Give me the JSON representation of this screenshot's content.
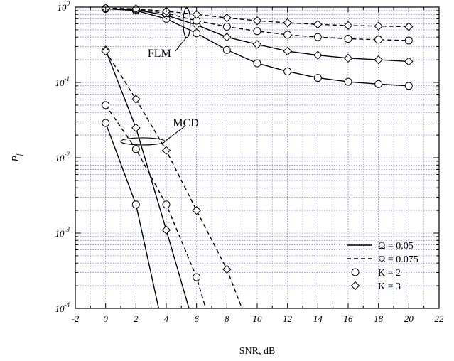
{
  "chart_data": {
    "type": "line",
    "title": "",
    "xlabel": "SNR,  dB",
    "ylabel": "P",
    "ylabel_subscript": "f",
    "xlim": [
      -2,
      22
    ],
    "ylim": [
      0.0001,
      1
    ],
    "yscale": "log",
    "grid": true,
    "xticks": [
      "-2",
      "0",
      "2",
      "4",
      "6",
      "8",
      "10",
      "12",
      "14",
      "16",
      "18",
      "20",
      "22"
    ],
    "yticks": [
      {
        "base": "10",
        "exp": "0"
      },
      {
        "base": "10",
        "exp": "-1"
      },
      {
        "base": "10",
        "exp": "-2"
      },
      {
        "base": "10",
        "exp": "-3"
      },
      {
        "base": "10",
        "exp": "-4"
      }
    ],
    "legend_position": "bottom-right",
    "legend": [
      {
        "label": "Ω = 0.05",
        "line": "solid",
        "marker": "none"
      },
      {
        "label": "Ω = 0.075",
        "line": "dashed",
        "marker": "none"
      },
      {
        "label": "K = 2",
        "line": "none",
        "marker": "circle"
      },
      {
        "label": "K = 3",
        "line": "none",
        "marker": "diamond"
      }
    ],
    "annotations": [
      {
        "text": "FLM"
      },
      {
        "text": "MCD"
      }
    ],
    "series": [
      {
        "group": "FLM",
        "omega": 0.05,
        "k": 2,
        "line": "solid",
        "marker": "circle",
        "x": [
          0,
          2,
          4,
          6,
          8,
          10,
          12,
          14,
          16,
          18,
          20
        ],
        "y": [
          0.95,
          0.9,
          0.7,
          0.45,
          0.27,
          0.18,
          0.14,
          0.115,
          0.102,
          0.095,
          0.09
        ]
      },
      {
        "group": "FLM",
        "omega": 0.05,
        "k": 3,
        "line": "solid",
        "marker": "diamond",
        "x": [
          0,
          2,
          4,
          6,
          8,
          10,
          12,
          14,
          16,
          18,
          20
        ],
        "y": [
          0.95,
          0.92,
          0.78,
          0.58,
          0.4,
          0.32,
          0.26,
          0.23,
          0.21,
          0.2,
          0.19
        ]
      },
      {
        "group": "FLM",
        "omega": 0.075,
        "k": 2,
        "line": "dashed",
        "marker": "circle",
        "x": [
          0,
          2,
          4,
          6,
          8,
          10,
          12,
          14,
          16,
          18,
          20
        ],
        "y": [
          0.96,
          0.93,
          0.83,
          0.66,
          0.55,
          0.48,
          0.43,
          0.4,
          0.38,
          0.37,
          0.36
        ]
      },
      {
        "group": "FLM",
        "omega": 0.075,
        "k": 3,
        "line": "dashed",
        "marker": "diamond",
        "x": [
          0,
          2,
          4,
          6,
          8,
          10,
          12,
          14,
          16,
          18,
          20
        ],
        "y": [
          0.97,
          0.95,
          0.88,
          0.8,
          0.72,
          0.66,
          0.62,
          0.59,
          0.57,
          0.56,
          0.55
        ]
      },
      {
        "group": "MCD",
        "omega": 0.05,
        "k": 2,
        "line": "solid",
        "marker": "circle",
        "x": [
          0,
          2,
          3.5
        ],
        "y": [
          0.029,
          0.0024,
          0.0001
        ]
      },
      {
        "group": "MCD",
        "omega": 0.05,
        "k": 3,
        "line": "solid",
        "marker": "diamond",
        "x": [
          0,
          2,
          4,
          5.5
        ],
        "y": [
          0.27,
          0.025,
          0.0011,
          0.0001
        ]
      },
      {
        "group": "MCD",
        "omega": 0.075,
        "k": 2,
        "line": "dashed",
        "marker": "circle",
        "x": [
          0,
          2,
          4,
          6,
          6.6
        ],
        "y": [
          0.05,
          0.013,
          0.0024,
          0.00026,
          0.0001
        ]
      },
      {
        "group": "MCD",
        "omega": 0.075,
        "k": 3,
        "line": "dashed",
        "marker": "diamond",
        "x": [
          0,
          2,
          4,
          6,
          8,
          9
        ],
        "y": [
          0.26,
          0.06,
          0.0125,
          0.002,
          0.00033,
          0.0001
        ]
      }
    ]
  }
}
